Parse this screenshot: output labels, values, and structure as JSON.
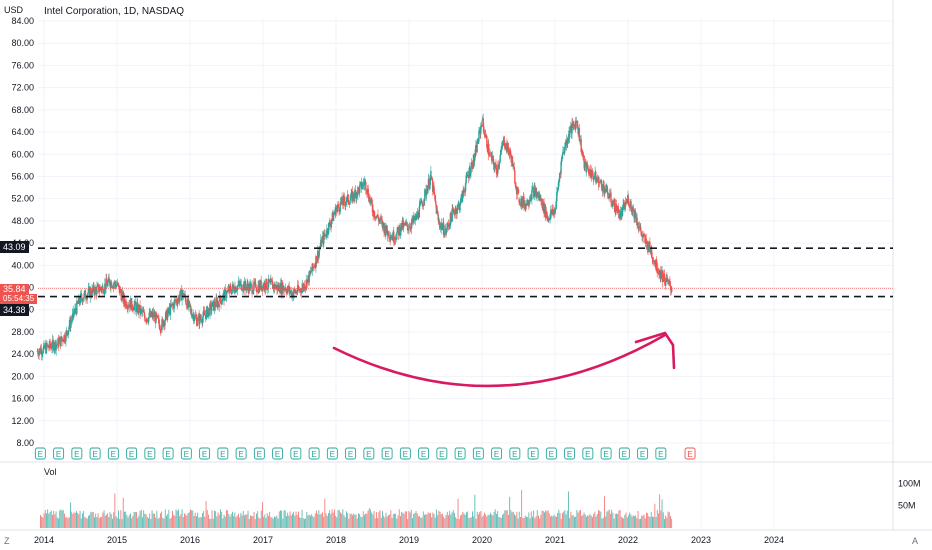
{
  "header": {
    "title": "Intel Corporation, 1D, NASDAQ",
    "currency": "USD"
  },
  "price_tags": {
    "upper_level": "43.09",
    "current_price": "35.84",
    "countdown": "05:54:35",
    "lower_level": "34.38"
  },
  "volume_label": "Vol",
  "volume_axis": [
    "100M",
    "50M"
  ],
  "corner_left": "Z",
  "corner_right": "A",
  "earnings_marker": "E",
  "colors": {
    "up": "#26a69a",
    "down": "#ef5350",
    "annotation": "#d81b60",
    "level": "#131722"
  },
  "chart_data": {
    "type": "candlestick",
    "title": "Intel Corporation, 1D, NASDAQ",
    "ylabel": "USD",
    "ylim": [
      8,
      84
    ],
    "y_ticks": [
      "84.00",
      "80.00",
      "76.00",
      "72.00",
      "68.00",
      "64.00",
      "60.00",
      "56.00",
      "52.00",
      "48.00",
      "44.00",
      "40.00",
      "36.00",
      "32.00",
      "28.00",
      "24.00",
      "20.00",
      "16.00",
      "12.00",
      "8.00"
    ],
    "x_ticks": [
      "2014",
      "2015",
      "2016",
      "2017",
      "2018",
      "2019",
      "2020",
      "2021",
      "2022",
      "2023",
      "2024"
    ],
    "x": [
      2013.9,
      2014.0,
      2014.1,
      2014.2,
      2014.3,
      2014.4,
      2014.5,
      2014.6,
      2014.7,
      2014.8,
      2014.9,
      2015.0,
      2015.1,
      2015.2,
      2015.3,
      2015.4,
      2015.5,
      2015.6,
      2015.7,
      2015.8,
      2015.9,
      2016.0,
      2016.1,
      2016.2,
      2016.3,
      2016.4,
      2016.5,
      2016.6,
      2016.7,
      2016.8,
      2016.9,
      2017.0,
      2017.1,
      2017.2,
      2017.3,
      2017.4,
      2017.5,
      2017.6,
      2017.7,
      2017.8,
      2017.9,
      2018.0,
      2018.1,
      2018.2,
      2018.3,
      2018.4,
      2018.5,
      2018.6,
      2018.7,
      2018.8,
      2018.9,
      2019.0,
      2019.1,
      2019.2,
      2019.3,
      2019.4,
      2019.5,
      2019.6,
      2019.7,
      2019.8,
      2019.9,
      2020.0,
      2020.1,
      2020.2,
      2020.3,
      2020.4,
      2020.5,
      2020.6,
      2020.7,
      2020.8,
      2020.9,
      2021.0,
      2021.1,
      2021.2,
      2021.3,
      2021.4,
      2021.5,
      2021.6,
      2021.7,
      2021.8,
      2021.9,
      2022.0,
      2022.1,
      2022.2,
      2022.3,
      2022.4,
      2022.5,
      2022.6
    ],
    "close": [
      24.5,
      25.0,
      25.5,
      26.0,
      27.5,
      31.0,
      34.0,
      35.0,
      35.5,
      36.0,
      37.0,
      36.5,
      33.5,
      33.0,
      32.0,
      30.5,
      31.0,
      29.0,
      31.5,
      33.5,
      35.0,
      32.0,
      30.0,
      31.0,
      32.5,
      33.5,
      35.0,
      36.0,
      36.5,
      36.0,
      36.0,
      36.5,
      36.5,
      36.0,
      36.0,
      35.0,
      35.5,
      37.0,
      40.0,
      44.0,
      47.0,
      50.0,
      51.5,
      52.0,
      53.5,
      55.0,
      50.0,
      48.0,
      46.0,
      45.0,
      47.0,
      47.0,
      48.5,
      52.0,
      56.0,
      48.0,
      46.0,
      49.5,
      51.0,
      56.0,
      59.5,
      66.0,
      60.0,
      57.0,
      62.5,
      59.5,
      52.0,
      51.0,
      53.5,
      52.0,
      48.5,
      50.0,
      60.0,
      64.0,
      66.0,
      58.0,
      56.5,
      55.0,
      53.5,
      51.0,
      49.0,
      52.0,
      49.0,
      45.0,
      43.0,
      39.5,
      37.5,
      35.84
    ],
    "levels": [
      43.09,
      34.38
    ],
    "current_price": 35.84,
    "annotation": "curved arrow pointing up (expected rebound)",
    "volume_ylim": [
      0,
      130000000
    ],
    "volume_axis_ticks": [
      "100M",
      "50M"
    ]
  }
}
